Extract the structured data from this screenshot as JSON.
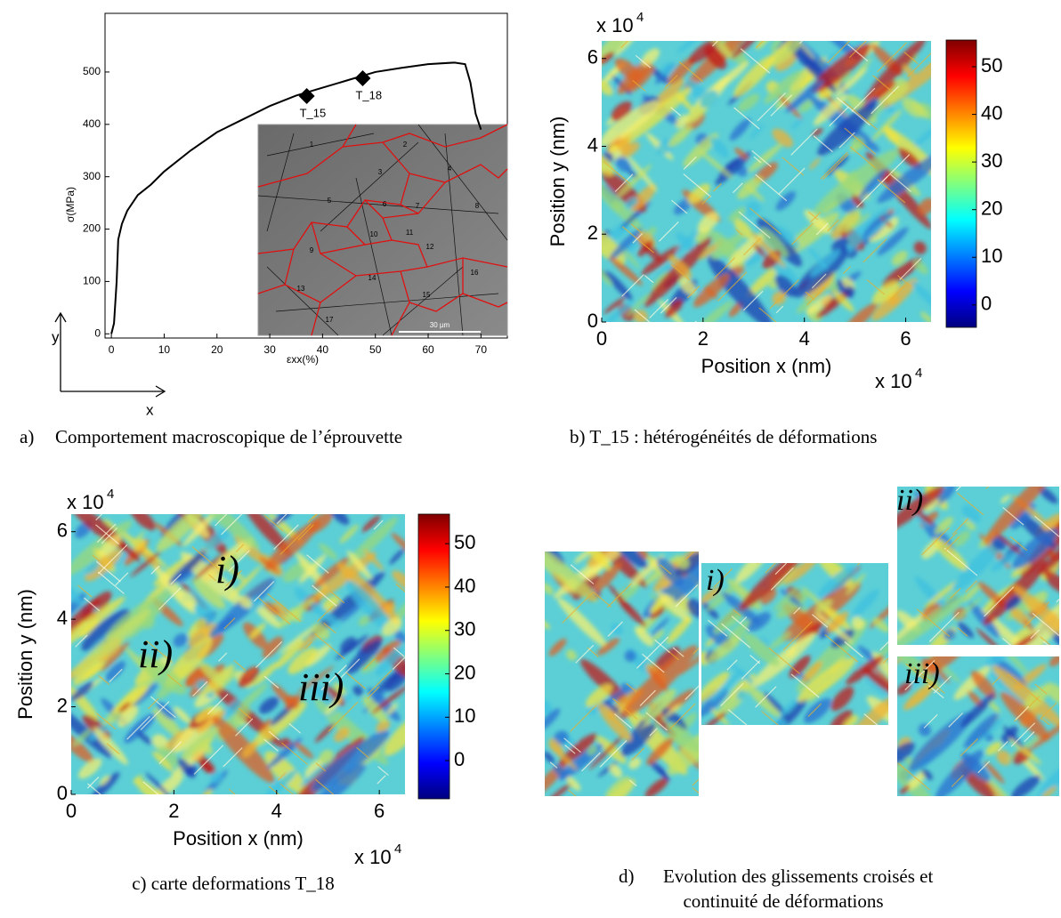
{
  "chart_data": [
    {
      "type": "line",
      "x_label": "εxx(%)",
      "y_label": "σ(MPa)",
      "color": "#000000",
      "x": [
        0,
        0.5,
        1,
        1.3,
        2,
        3,
        5,
        7.5,
        10,
        15,
        20,
        25,
        30,
        35,
        40,
        45,
        50,
        55,
        60,
        65,
        67,
        68,
        69,
        70
      ],
      "values": [
        0,
        20,
        100,
        180,
        210,
        235,
        265,
        285,
        310,
        350,
        385,
        410,
        435,
        455,
        470,
        485,
        500,
        508,
        515,
        518,
        515,
        480,
        420,
        390
      ],
      "xlim": [
        -1.2,
        75
      ],
      "ylim": [
        -8,
        612
      ],
      "xticks": [
        0,
        10,
        20,
        30,
        40,
        50,
        60,
        70
      ],
      "yticks": [
        0,
        100,
        200,
        300,
        400,
        500
      ],
      "annotations": [
        {
          "label": "T_15",
          "x": 37,
          "y": 454
        },
        {
          "label": "T_18",
          "x": 47.6,
          "y": 488
        }
      ],
      "inset": {
        "grains": [
          "1",
          "2",
          "3",
          "4",
          "5",
          "6",
          "7",
          "8",
          "9",
          "10",
          "11",
          "12",
          "13",
          "14",
          "15",
          "16",
          "17"
        ],
        "scale_bar": "30 µm"
      },
      "axis_arrows": [
        "x",
        "y"
      ]
    },
    {
      "type": "heatmap",
      "x_label": "Position x (nm)",
      "y_label": "Position y (nm)",
      "xlim": [
        0,
        6.5
      ],
      "ylim": [
        0,
        6.4
      ],
      "xticks": [
        0,
        2,
        4,
        6
      ],
      "yticks": [
        0,
        2,
        4,
        6
      ],
      "multiplier": {
        "base": "x 10",
        "exp": "4"
      },
      "colorbar": {
        "lim": [
          -4.7,
          55.6
        ],
        "ticks": [
          0,
          10,
          20,
          30,
          40,
          50
        ]
      }
    },
    {
      "type": "heatmap",
      "x_label": "Position x (nm)",
      "y_label": "Position y (nm)",
      "xlim": [
        0,
        6.5
      ],
      "ylim": [
        0,
        6.4
      ],
      "xticks": [
        0,
        2,
        4,
        6
      ],
      "yticks": [
        0,
        2,
        4,
        6
      ],
      "multiplier": {
        "base": "x 10",
        "exp": "4"
      },
      "colorbar": {
        "lim": [
          -8.8,
          56.8
        ],
        "ticks": [
          0,
          10,
          20,
          30,
          40,
          50
        ]
      },
      "annotations": [
        "i)",
        "ii)",
        "iii)"
      ]
    }
  ],
  "captions": [
    {
      "marker": "a)",
      "text": "Comportement macroscopique de l’éprouvette"
    },
    {
      "text": "b) T_15 : hétérogénéités de déformations"
    },
    {
      "text": "c) carte deformations T_18"
    },
    {
      "marker": "d)",
      "lines": [
        "Evolution des glissements croisés et",
        "continuité de déformations"
      ]
    }
  ],
  "panel_d": {
    "labels": [
      "i)",
      "ii)",
      "iii)"
    ]
  }
}
